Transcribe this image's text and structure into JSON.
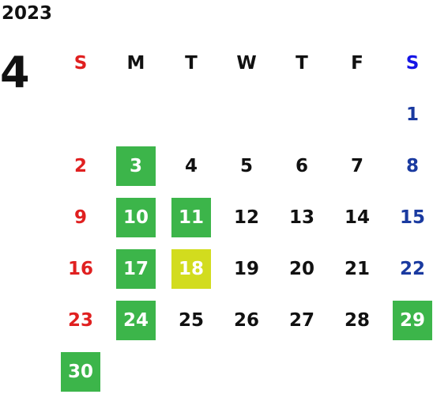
{
  "calendar": {
    "year": "2023",
    "month": "4",
    "colors": {
      "highlight_green": "#3cb54a",
      "highlight_yellow": "#d2dc1e",
      "sunday": "#e02020",
      "saturday": "#1a3aa0"
    },
    "weekdays": [
      "S",
      "M",
      "T",
      "W",
      "T",
      "F",
      "S"
    ],
    "weeks": [
      [
        {
          "day": ""
        },
        {
          "day": ""
        },
        {
          "day": ""
        },
        {
          "day": ""
        },
        {
          "day": ""
        },
        {
          "day": ""
        },
        {
          "day": "1"
        }
      ],
      [
        {
          "day": "2"
        },
        {
          "day": "3",
          "highlight": "green"
        },
        {
          "day": "4"
        },
        {
          "day": "5"
        },
        {
          "day": "6"
        },
        {
          "day": "7"
        },
        {
          "day": "8"
        }
      ],
      [
        {
          "day": "9"
        },
        {
          "day": "10",
          "highlight": "green"
        },
        {
          "day": "11",
          "highlight": "green"
        },
        {
          "day": "12"
        },
        {
          "day": "13"
        },
        {
          "day": "14"
        },
        {
          "day": "15"
        }
      ],
      [
        {
          "day": "16"
        },
        {
          "day": "17",
          "highlight": "green"
        },
        {
          "day": "18",
          "highlight": "yellow"
        },
        {
          "day": "19"
        },
        {
          "day": "20"
        },
        {
          "day": "21"
        },
        {
          "day": "22"
        }
      ],
      [
        {
          "day": "23"
        },
        {
          "day": "24",
          "highlight": "green"
        },
        {
          "day": "25"
        },
        {
          "day": "26"
        },
        {
          "day": "27"
        },
        {
          "day": "28"
        },
        {
          "day": "29",
          "highlight": "green"
        }
      ],
      [
        {
          "day": "30",
          "highlight": "green"
        },
        {
          "day": ""
        },
        {
          "day": ""
        },
        {
          "day": ""
        },
        {
          "day": ""
        },
        {
          "day": ""
        },
        {
          "day": ""
        }
      ]
    ]
  }
}
